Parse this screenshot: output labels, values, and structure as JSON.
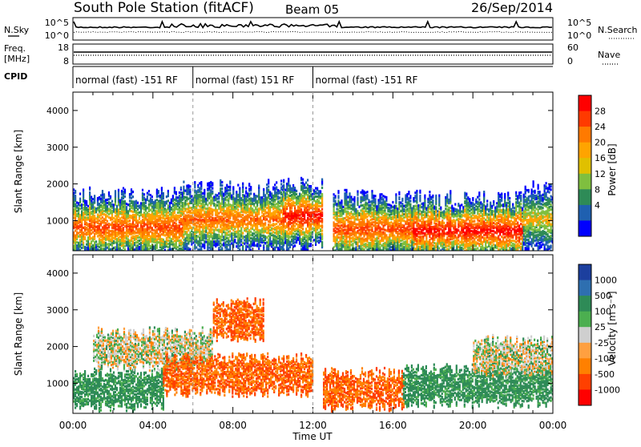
{
  "header": {
    "station": "South Pole Station (fitACF)",
    "beam": "Beam 05",
    "date": "26/Sep/2014"
  },
  "top_panels": {
    "nsky_label": "N.Sky",
    "nsky_ticks": [
      "10^5",
      "10^0"
    ],
    "nsearch_label": "N.Search",
    "nsearch_ticks": [
      "10^5",
      "10^0"
    ],
    "freq_label_1": "Freq.",
    "freq_label_2": "[MHz]",
    "freq_ticks": [
      "18",
      "8"
    ],
    "nave_label": "Nave",
    "nave_ticks": [
      "60",
      "0"
    ],
    "cpid_label": "CPID",
    "cpid_segments": [
      {
        "label": "normal (fast) -151 RF",
        "start": 0,
        "end": 6
      },
      {
        "label": "normal (fast) 151 RF",
        "start": 6,
        "end": 12
      },
      {
        "label": "normal (fast) -151 RF",
        "start": 12,
        "end": 24
      }
    ]
  },
  "power_colorbar": {
    "title": "Power [dB]",
    "ticks": [
      "28",
      "24",
      "20",
      "16",
      "12",
      "8",
      "4"
    ],
    "colors": [
      "#ff0000",
      "#ff3a00",
      "#ff7a00",
      "#ffa400",
      "#e0c000",
      "#7fbf3f",
      "#2e8b57",
      "#1f60b0",
      "#0000ff"
    ]
  },
  "velocity_colorbar": {
    "title": "Velocity [m s⁻¹]",
    "ticks": [
      "1000",
      "500",
      "100",
      "25",
      "-25",
      "-100",
      "-500",
      "-1000"
    ],
    "colors": [
      "#1c3f9e",
      "#2e6fb0",
      "#2e8b57",
      "#4caf50",
      "#cfcfcf",
      "#ffa040",
      "#ff8000",
      "#ff4000",
      "#ff0000"
    ]
  },
  "chart_data": [
    {
      "type": "heatmap",
      "title": "Power",
      "xlabel": "Time UT",
      "ylabel": "Slant Range [km]",
      "x_ticks": [
        "00:00",
        "04:00",
        "08:00",
        "12:00",
        "16:00",
        "20:00",
        "00:00"
      ],
      "xlim_hours": [
        0,
        24
      ],
      "y_ticks": [
        1000,
        2000,
        3000,
        4000
      ],
      "ylim": [
        180,
        4500
      ],
      "dashed_vlines_hours": [
        6,
        12
      ],
      "backscatter_bands": [
        {
          "start_hour": 0.0,
          "end_hour": 5.5,
          "range_center_km": 800,
          "peak_db": 24
        },
        {
          "start_hour": 5.5,
          "end_hour": 10.5,
          "range_center_km": 1000,
          "peak_db": 22
        },
        {
          "start_hour": 10.5,
          "end_hour": 12.5,
          "range_center_km": 1100,
          "peak_db": 28
        },
        {
          "start_hour": 13.0,
          "end_hour": 17.0,
          "range_center_km": 750,
          "peak_db": 24
        },
        {
          "start_hour": 17.0,
          "end_hour": 22.5,
          "range_center_km": 700,
          "peak_db": 28
        },
        {
          "start_hour": 22.5,
          "end_hour": 24.0,
          "range_center_km": 1000,
          "peak_db": 16
        }
      ]
    },
    {
      "type": "heatmap",
      "title": "Velocity",
      "xlabel": "Time UT",
      "ylabel": "Slant Range [km]",
      "x_ticks": [
        "00:00",
        "04:00",
        "08:00",
        "12:00",
        "16:00",
        "20:00",
        "00:00"
      ],
      "xlim_hours": [
        0,
        24
      ],
      "y_ticks": [
        1000,
        2000,
        3000,
        4000
      ],
      "ylim": [
        180,
        4500
      ],
      "dashed_vlines_hours": [
        6,
        12
      ],
      "velocity_bands": [
        {
          "start_hour": 0.0,
          "end_hour": 4.5,
          "range_center_km": 800,
          "velocity_ms": 100
        },
        {
          "start_hour": 1.0,
          "end_hour": 7.0,
          "range_center_km": 1900,
          "velocity_ms": 0
        },
        {
          "start_hour": 4.5,
          "end_hour": 12.0,
          "range_center_km": 1200,
          "velocity_ms": -300
        },
        {
          "start_hour": 7.0,
          "end_hour": 9.5,
          "range_center_km": 2700,
          "velocity_ms": -300
        },
        {
          "start_hour": 12.5,
          "end_hour": 16.5,
          "range_center_km": 800,
          "velocity_ms": -300
        },
        {
          "start_hour": 16.5,
          "end_hour": 24.0,
          "range_center_km": 900,
          "velocity_ms": 100
        },
        {
          "start_hour": 20.0,
          "end_hour": 24.0,
          "range_center_km": 1700,
          "velocity_ms": 0
        }
      ]
    }
  ]
}
